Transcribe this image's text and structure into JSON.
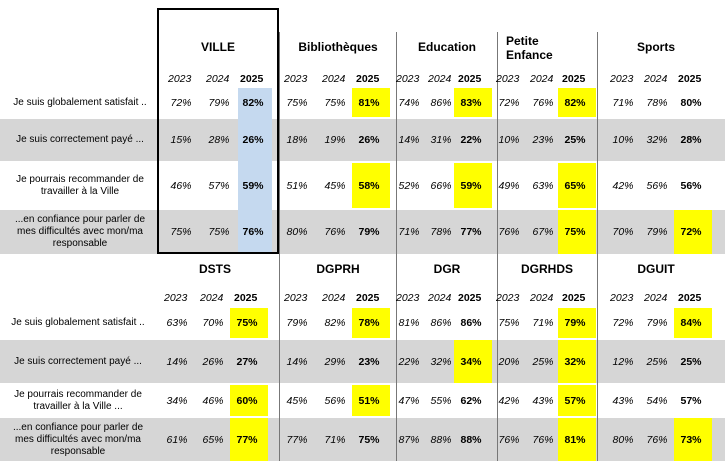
{
  "top": {
    "groups": [
      {
        "name": "VILLE",
        "years": [
          "2023",
          "2024",
          "2025"
        ],
        "rows": [
          [
            "72%",
            "79%",
            "82%"
          ],
          [
            "15%",
            "28%",
            "26%"
          ],
          [
            "46%",
            "57%",
            "59%"
          ],
          [
            "75%",
            "75%",
            "76%"
          ]
        ]
      },
      {
        "name": "Bibliothèques",
        "years": [
          "2023",
          "2024",
          "2025"
        ],
        "rows": [
          [
            "75%",
            "75%",
            "81%"
          ],
          [
            "18%",
            "19%",
            "26%"
          ],
          [
            "51%",
            "45%",
            "58%"
          ],
          [
            "80%",
            "76%",
            "79%"
          ]
        ]
      },
      {
        "name": "Education",
        "years": [
          "2023",
          "2024",
          "2025"
        ],
        "rows": [
          [
            "74%",
            "86%",
            "83%"
          ],
          [
            "14%",
            "31%",
            "22%"
          ],
          [
            "52%",
            "66%",
            "59%"
          ],
          [
            "71%",
            "78%",
            "77%"
          ]
        ]
      },
      {
        "name": "Petite\nEnfance",
        "years": [
          "2023",
          "2024",
          "2025"
        ],
        "rows": [
          [
            "72%",
            "76%",
            "82%"
          ],
          [
            "10%",
            "23%",
            "25%"
          ],
          [
            "49%",
            "63%",
            "65%"
          ],
          [
            "76%",
            "67%",
            "75%"
          ]
        ]
      },
      {
        "name": "Sports",
        "years": [
          "2023",
          "2024",
          "2025"
        ],
        "rows": [
          [
            "71%",
            "78%",
            "80%"
          ],
          [
            "10%",
            "32%",
            "28%"
          ],
          [
            "42%",
            "56%",
            "56%"
          ],
          [
            "70%",
            "79%",
            "72%"
          ]
        ]
      }
    ],
    "labels": [
      "Je suis globalement satisfait ..",
      "Je suis correctement payé ...",
      "Je pourrais recommander de travailler à la Ville",
      "...en confiance pour parler de mes difficultés avec mon/ma responsable"
    ]
  },
  "bottom": {
    "groups": [
      {
        "name": "DSTS",
        "years": [
          "2023",
          "2024",
          "2025"
        ],
        "rows": [
          [
            "63%",
            "70%",
            "75%"
          ],
          [
            "14%",
            "26%",
            "27%"
          ],
          [
            "34%",
            "46%",
            "60%"
          ],
          [
            "61%",
            "65%",
            "77%"
          ]
        ]
      },
      {
        "name": "DGPRH",
        "years": [
          "2023",
          "2024",
          "2025"
        ],
        "rows": [
          [
            "79%",
            "82%",
            "78%"
          ],
          [
            "14%",
            "29%",
            "23%"
          ],
          [
            "45%",
            "56%",
            "51%"
          ],
          [
            "77%",
            "71%",
            "75%"
          ]
        ]
      },
      {
        "name": "DGR",
        "years": [
          "2023",
          "2024",
          "2025"
        ],
        "rows": [
          [
            "81%",
            "86%",
            "86%"
          ],
          [
            "22%",
            "32%",
            "34%"
          ],
          [
            "47%",
            "55%",
            "62%"
          ],
          [
            "87%",
            "88%",
            "88%"
          ]
        ]
      },
      {
        "name": "DGRHDS",
        "years": [
          "2023",
          "2024",
          "2025"
        ],
        "rows": [
          [
            "75%",
            "71%",
            "79%"
          ],
          [
            "20%",
            "25%",
            "32%"
          ],
          [
            "42%",
            "43%",
            "57%"
          ],
          [
            "76%",
            "76%",
            "81%"
          ]
        ]
      },
      {
        "name": "DGUIT",
        "years": [
          "2023",
          "2024",
          "2025"
        ],
        "rows": [
          [
            "72%",
            "79%",
            "84%"
          ],
          [
            "12%",
            "25%",
            "25%"
          ],
          [
            "43%",
            "54%",
            "57%"
          ],
          [
            "80%",
            "76%",
            "73%"
          ]
        ]
      }
    ],
    "labels": [
      "Je suis globalement satisfait ..",
      "Je suis correctement payé ...",
      "Je pourrais recommander de travailler à la Ville ...",
      "...en confiance pour parler de mes difficultés avec mon/ma responsable"
    ]
  },
  "colors": {
    "highlight": "#ffff00",
    "ville_highlight": "#c5d9ef",
    "band": "#d6d6d6"
  }
}
